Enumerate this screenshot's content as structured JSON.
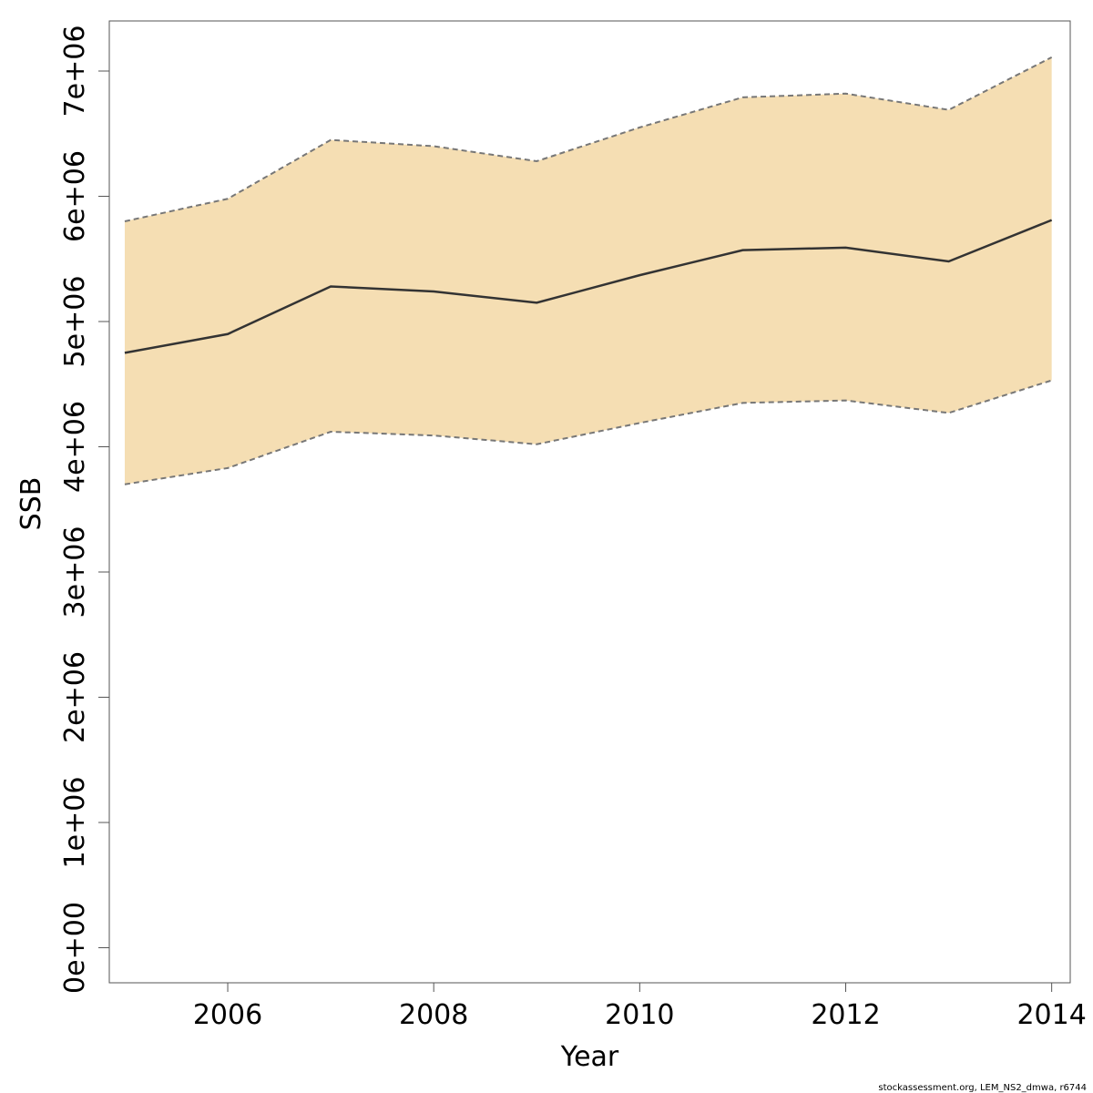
{
  "chart_data": {
    "type": "line",
    "xlabel": "Year",
    "ylabel": "SSB",
    "xlim": [
      2004.85,
      2014.18
    ],
    "ylim": [
      -280000,
      7400000
    ],
    "x_ticks": [
      2006,
      2008,
      2010,
      2012,
      2014
    ],
    "x_tick_labels": [
      "2006",
      "2008",
      "2010",
      "2012",
      "2014"
    ],
    "y_ticks": [
      0,
      1000000,
      2000000,
      3000000,
      4000000,
      5000000,
      6000000,
      7000000
    ],
    "y_tick_labels": [
      "0e+00",
      "1e+06",
      "2e+06",
      "3e+06",
      "4e+06",
      "5e+06",
      "6e+06",
      "7e+06"
    ],
    "x": [
      2005,
      2006,
      2007,
      2008,
      2009,
      2010,
      2011,
      2012,
      2013,
      2014
    ],
    "series": [
      {
        "role": "estimate",
        "values": [
          4750000,
          4900000,
          5280000,
          5240000,
          5150000,
          5370000,
          5570000,
          5590000,
          5480000,
          5810000
        ]
      },
      {
        "role": "upper",
        "values": [
          5800000,
          5980000,
          6450000,
          6400000,
          6280000,
          6550000,
          6790000,
          6820000,
          6690000,
          7110000
        ]
      },
      {
        "role": "lower",
        "values": [
          3700000,
          3830000,
          4120000,
          4090000,
          4020000,
          4190000,
          4350000,
          4370000,
          4270000,
          4530000
        ]
      }
    ],
    "band_color": "#f5deb3",
    "line_color": "#333333",
    "bound_line_color": "#777777",
    "grid": false
  },
  "footer": "stockassessment.org, LEM_NS2_dmwa, r6744"
}
